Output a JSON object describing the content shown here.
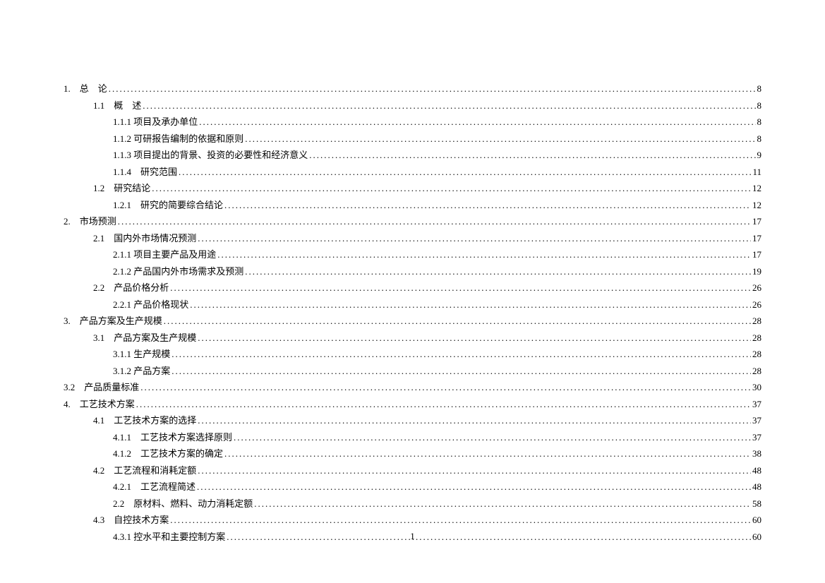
{
  "page_number": "1",
  "font_family": "SimSun",
  "text_color": "#000000",
  "background_color": "#ffffff",
  "toc_entries": [
    {
      "level": 1,
      "label": "1.　总　论",
      "page": "8"
    },
    {
      "level": 2,
      "label": "1.1　概　述",
      "page": "8"
    },
    {
      "level": 3,
      "label": "1.1.1  项目及承办单位",
      "page": "8"
    },
    {
      "level": 3,
      "label": "1.1.2  可研报告编制的依据和原则",
      "page": "8"
    },
    {
      "level": 3,
      "label": "1.1.3  项目提出的背景、投资的必要性和经济意义",
      "page": "9"
    },
    {
      "level": 3,
      "label": "1.1.4　研究范围",
      "page": "11"
    },
    {
      "level": 2,
      "label": "1.2　研究结论",
      "page": "12"
    },
    {
      "level": 3,
      "label": "1.2.1　研究的简要综合结论",
      "page": "12"
    },
    {
      "level": 1,
      "label": "2.　市场预测",
      "page": "17"
    },
    {
      "level": 2,
      "label": "2.1　国内外市场情况预测",
      "page": "17"
    },
    {
      "level": 3,
      "label": "2.1.1  项目主要产品及用途",
      "page": "17"
    },
    {
      "level": 3,
      "label": "2.1.2  产品国内外市场需求及预测",
      "page": "19"
    },
    {
      "level": 2,
      "label": "2.2　产品价格分析",
      "page": "26"
    },
    {
      "level": 3,
      "label": "2.2.1  产品价格现状",
      "page": "26"
    },
    {
      "level": 1,
      "label": "3.　产品方案及生产规模",
      "page": "28"
    },
    {
      "level": 2,
      "label": "3.1　产品方案及生产规模",
      "page": "28"
    },
    {
      "level": 3,
      "label": "3.1.1  生产规模",
      "page": "28"
    },
    {
      "level": 3,
      "label": "3.1.2  产品方案",
      "page": "28"
    },
    {
      "level": 0,
      "label": "3.2　产品质量标准",
      "page": "30"
    },
    {
      "level": 1,
      "label": "4.　工艺技术方案",
      "page": "37"
    },
    {
      "level": 2,
      "label": "4.1　工艺技术方案的选择",
      "page": "37"
    },
    {
      "level": 3,
      "label": "4.1.1　工艺技术方案选择原则",
      "page": "37"
    },
    {
      "level": 3,
      "label": "4.1.2　工艺技术方案的确定",
      "page": "38"
    },
    {
      "level": 2,
      "label": "4.2　工艺流程和消耗定额",
      "page": "48"
    },
    {
      "level": 3,
      "label": "4.2.1　工艺流程简述",
      "page": "48"
    },
    {
      "level": 3,
      "label": "2.2　原材料、燃料、动力消耗定额",
      "page": "58"
    },
    {
      "level": 2,
      "label": "4.3　自控技术方案",
      "page": "60"
    },
    {
      "level": 3,
      "label": "4.3.1  控水平和主要控制方案",
      "page": "60"
    }
  ]
}
